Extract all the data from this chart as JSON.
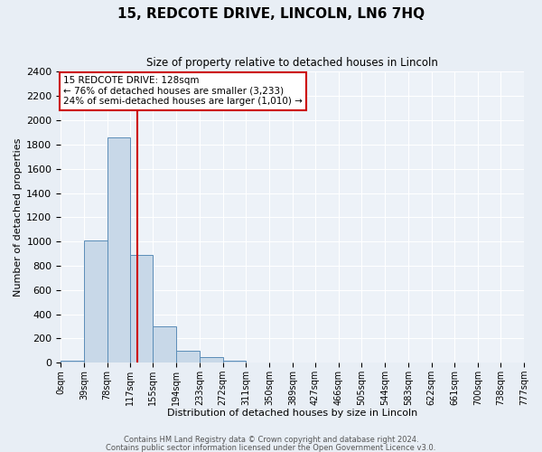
{
  "title": "15, REDCOTE DRIVE, LINCOLN, LN6 7HQ",
  "subtitle": "Size of property relative to detached houses in Lincoln",
  "xlabel": "Distribution of detached houses by size in Lincoln",
  "ylabel": "Number of detached properties",
  "bin_edges": [
    0,
    39,
    78,
    117,
    155,
    194,
    233,
    272,
    311,
    350,
    389,
    427,
    466,
    505,
    544,
    583,
    622,
    661,
    700,
    738,
    777
  ],
  "bin_labels": [
    "0sqm",
    "39sqm",
    "78sqm",
    "117sqm",
    "155sqm",
    "194sqm",
    "233sqm",
    "272sqm",
    "311sqm",
    "350sqm",
    "389sqm",
    "427sqm",
    "466sqm",
    "505sqm",
    "544sqm",
    "583sqm",
    "622sqm",
    "661sqm",
    "700sqm",
    "738sqm",
    "777sqm"
  ],
  "bar_heights": [
    20,
    1005,
    1860,
    890,
    300,
    100,
    45,
    20,
    5,
    0,
    0,
    0,
    0,
    0,
    0,
    0,
    0,
    0,
    0,
    0
  ],
  "bar_color": "#c8d8e8",
  "bar_edge_color": "#5b8db8",
  "vline_x": 128,
  "vline_color": "#cc0000",
  "ylim": [
    0,
    2400
  ],
  "yticks": [
    0,
    200,
    400,
    600,
    800,
    1000,
    1200,
    1400,
    1600,
    1800,
    2000,
    2200,
    2400
  ],
  "annotation_title": "15 REDCOTE DRIVE: 128sqm",
  "annotation_line1": "← 76% of detached houses are smaller (3,233)",
  "annotation_line2": "24% of semi-detached houses are larger (1,010) →",
  "annotation_box_color": "#ffffff",
  "annotation_box_edge": "#cc0000",
  "footer1": "Contains HM Land Registry data © Crown copyright and database right 2024.",
  "footer2": "Contains public sector information licensed under the Open Government Licence v3.0.",
  "background_color": "#e8eef5",
  "plot_bg_color": "#edf2f8",
  "grid_color": "#ffffff"
}
